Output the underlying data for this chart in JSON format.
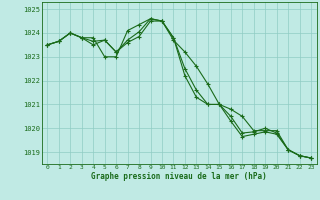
{
  "x": [
    0,
    1,
    2,
    3,
    4,
    5,
    6,
    7,
    8,
    9,
    10,
    11,
    12,
    13,
    14,
    15,
    16,
    17,
    18,
    19,
    20,
    21,
    22,
    23
  ],
  "series": [
    [
      1023.5,
      1023.65,
      1024.0,
      1023.8,
      1023.8,
      1023.0,
      1023.0,
      1024.1,
      1024.35,
      1024.6,
      1024.5,
      1023.7,
      1023.2,
      1022.6,
      1021.85,
      1021.0,
      1020.8,
      1020.5,
      1019.9,
      1019.9,
      1019.9,
      1019.1,
      1018.85,
      1018.75
    ],
    [
      1023.5,
      1023.65,
      1024.0,
      1023.8,
      1023.65,
      1023.7,
      1023.2,
      1023.7,
      1024.05,
      1024.6,
      1024.5,
      1023.8,
      1022.5,
      1021.6,
      1021.0,
      1021.0,
      1020.5,
      1019.8,
      1019.85,
      1020.0,
      1019.8,
      1019.1,
      1018.85,
      1018.75
    ],
    [
      1023.5,
      1023.65,
      1024.0,
      1023.8,
      1023.5,
      1023.7,
      1023.2,
      1023.6,
      1023.85,
      1024.5,
      1024.5,
      1023.8,
      1022.2,
      1021.3,
      1021.0,
      1021.0,
      1020.3,
      1019.65,
      1019.75,
      1019.85,
      1019.75,
      1019.1,
      1018.85,
      1018.75
    ]
  ],
  "ylim": [
    1018.5,
    1025.3
  ],
  "yticks": [
    1019,
    1020,
    1021,
    1022,
    1023,
    1024,
    1025
  ],
  "xlabel": "Graphe pression niveau de la mer (hPa)",
  "line_color": "#1a6b1a",
  "bg_color": "#c0eae4",
  "grid_color": "#90ccc4",
  "marker": "+",
  "markersize": 3.5,
  "linewidth": 0.8
}
